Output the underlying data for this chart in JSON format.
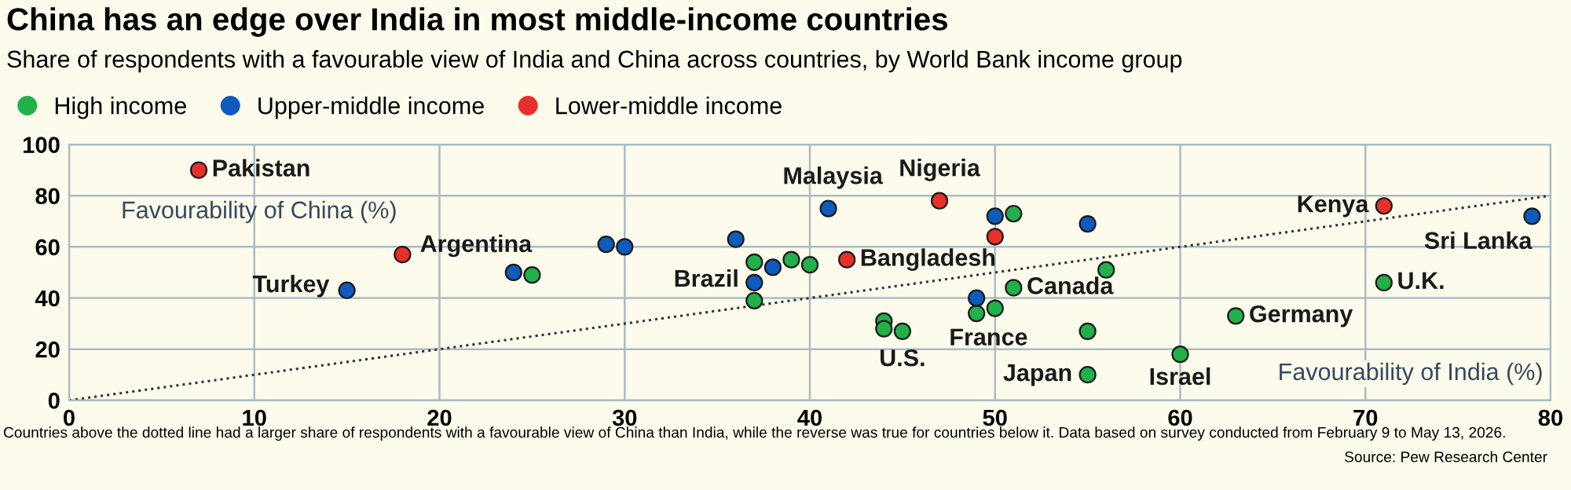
{
  "chart_data": {
    "type": "scatter",
    "title": "China has an edge over India in most middle-income countries",
    "subtitle": "Share of respondents with a favourable view of India and China across countries, by World Bank income group",
    "xlabel": "Favourability of India (%)",
    "ylabel": "Favourability of China (%)",
    "series": [
      {
        "name": "High income",
        "color": "#22b04b",
        "marker": "circle",
        "x": [
          25,
          37,
          37,
          39,
          40,
          44,
          44,
          45,
          51,
          51,
          50,
          49,
          56,
          55,
          55,
          60,
          63,
          71
        ],
        "values": [
          49,
          54,
          39,
          55,
          53,
          31,
          28,
          27,
          73,
          44,
          36,
          34,
          51,
          27,
          10,
          18,
          33,
          46
        ]
      },
      {
        "name": "Upper-middle income",
        "color": "#0f5bbd",
        "marker": "circle",
        "x": [
          15,
          24,
          29,
          30,
          36,
          37,
          38,
          41,
          50,
          49,
          55,
          79
        ],
        "values": [
          43,
          50,
          61,
          60,
          63,
          46,
          52,
          75,
          72,
          40,
          69,
          72
        ]
      },
      {
        "name": "Lower-middle income",
        "color": "#e8302a",
        "marker": "circle",
        "x": [
          7,
          18,
          47,
          42,
          50,
          71
        ],
        "values": [
          90,
          57,
          78,
          55,
          64,
          76
        ]
      },
      {
        "type": "line",
        "color": "#333333",
        "line_style": "dotted",
        "x": [
          0,
          80
        ],
        "values": [
          0,
          80
        ]
      }
    ],
    "xlim": [
      0,
      80
    ],
    "ylim": [
      0,
      100
    ],
    "xticks": [
      0,
      10,
      20,
      30,
      40,
      50,
      60,
      70,
      80
    ],
    "yticks": [
      0,
      20,
      40,
      60,
      80,
      100
    ],
    "grid": true,
    "legend": "top left",
    "annotations": [
      {
        "text": "Pakistan",
        "x": 7,
        "y": 90
      },
      {
        "text": "Argentina",
        "x": 18,
        "y": 57
      },
      {
        "text": "Nigeria",
        "x": 47,
        "y": 78
      },
      {
        "text": "Bangladesh",
        "x": 42,
        "y": 55
      },
      {
        "text": "Kenya",
        "x": 71,
        "y": 76
      },
      {
        "text": "Turkey",
        "x": 15,
        "y": 43
      },
      {
        "text": "Brazil",
        "x": 37,
        "y": 46
      },
      {
        "text": "Malaysia",
        "x": 41,
        "y": 75
      },
      {
        "text": "Sri Lanka",
        "x": 79,
        "y": 72
      },
      {
        "text": "U.S.",
        "x": 45,
        "y": 27
      },
      {
        "text": "Canada",
        "x": 51,
        "y": 44
      },
      {
        "text": "France",
        "x": 50,
        "y": 36
      },
      {
        "text": "Japan",
        "x": 55,
        "y": 10
      },
      {
        "text": "Israel",
        "x": 60,
        "y": 18
      },
      {
        "text": "Germany",
        "x": 63,
        "y": 33
      },
      {
        "text": "U.K.",
        "x": 71,
        "y": 46
      },
      "Countries above the dotted line had a larger share of respondents with a favourable view of China than India, while the reverse was true for countries below it. Data based on survey conducted from February 9 to May 13, 2026.",
      "Source: Pew Research Center"
    ]
  }
}
